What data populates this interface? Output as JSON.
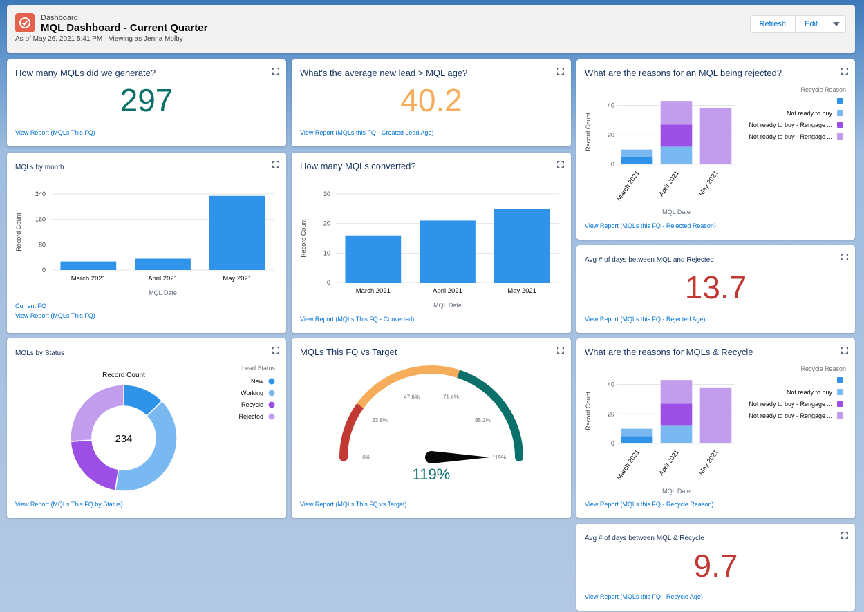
{
  "header": {
    "eyebrow": "Dashboard",
    "title": "MQL Dashboard - Current Quarter",
    "subtitle": "As of May 26, 2021 5:41 PM · Viewing as Jenna Molby",
    "refresh_label": "Refresh",
    "edit_label": "Edit"
  },
  "colors": {
    "teal": "#0b6f6a",
    "orange": "#f5ad5c",
    "red": "#c23934",
    "bar_blue": "#2f93e9",
    "light_blue": "#7ab8f2",
    "purple": "#9b4fe5",
    "light_purple": "#c39ded"
  },
  "cards": {
    "mqls_generated": {
      "title": "How many MQLs did we generate?",
      "value": "297",
      "link": "View Report (MQLs This FQ)"
    },
    "avg_age": {
      "title": "What's the average new lead > MQL age?",
      "value": "40.2",
      "link": "View Report (MQLs this FQ - Created Lead Age)"
    },
    "mqls_by_month": {
      "title": "MQLs by month",
      "footer": "Current FQ",
      "link": "View Report (MQLs This FQ)"
    },
    "converted": {
      "title": "How many MQLs converted?",
      "link": "View Report (MQLs This FQ - Converted)"
    },
    "rejected_reasons": {
      "title": "What are the reasons for an MQL being rejected?",
      "link": "View Report (MQLs this FQ - Rejected Reason)"
    },
    "avg_days_rejected": {
      "title": "Avg # of days between MQL and Rejected",
      "value": "13.7",
      "link": "View Report (MQLs this FQ - Rejected Age)"
    },
    "by_status": {
      "title": "MQLs by Status",
      "link": "View Report (MQLs This FQ by Status)"
    },
    "vs_target": {
      "title": "MQLs This FQ vs Target",
      "link": "View Report (MQLs This FQ vs Target)"
    },
    "recycle_reasons": {
      "title": "What are the reasons for MQLs & Recycle",
      "link": "View Report (MQLs this FQ - Recycle Reason)"
    },
    "avg_days_recycle": {
      "title": "Avg # of days between MQL & Recycle",
      "value": "9.7",
      "link": "View Report (MQLs this FQ - Recycle Age)"
    }
  },
  "chart_data": [
    {
      "id": "mqls_by_month",
      "type": "bar",
      "categories": [
        "March 2021",
        "April 2021",
        "May 2021"
      ],
      "values": [
        27,
        36,
        234
      ],
      "xlabel": "MQL Date",
      "ylabel": "Record Count",
      "ylim": [
        0,
        240
      ],
      "yticks": [
        0,
        80,
        160,
        240
      ]
    },
    {
      "id": "converted",
      "type": "bar",
      "categories": [
        "March 2021",
        "April 2021",
        "May 2021"
      ],
      "values": [
        16,
        21,
        25
      ],
      "xlabel": "MQL Date",
      "ylabel": "Record Count",
      "ylim": [
        0,
        30
      ],
      "yticks": [
        0,
        10,
        20,
        30
      ]
    },
    {
      "id": "rejected_reasons",
      "type": "bar",
      "stacked": true,
      "categories": [
        "March 2021",
        "April 2021",
        "May 2021"
      ],
      "xlabel": "MQL Date",
      "ylabel": "Record Count",
      "ylim": [
        0,
        44
      ],
      "yticks": [
        0,
        20,
        40
      ],
      "legend_title": "Recycle Reason",
      "series": [
        {
          "name": "-",
          "color": "#2f93e9",
          "values": [
            5,
            0,
            0
          ]
        },
        {
          "name": "Not ready to buy",
          "color": "#7ab8f2",
          "values": [
            5,
            12,
            0
          ]
        },
        {
          "name": "Not ready to buy - Rengage ...",
          "color": "#9b4fe5",
          "values": [
            0,
            15,
            0
          ]
        },
        {
          "name": "Not ready to buy - Rengage ...",
          "color": "#c39ded",
          "values": [
            0,
            16,
            38
          ]
        }
      ]
    },
    {
      "id": "by_status",
      "type": "pie",
      "title": "Record Count",
      "total": "234",
      "legend_title": "Lead Status",
      "labels": [
        "New",
        "Working",
        "Recycle",
        "Rejected"
      ],
      "values": [
        30,
        93,
        50,
        61
      ],
      "colors": [
        "#2f93e9",
        "#7ab8f2",
        "#9b4fe5",
        "#c39ded"
      ]
    },
    {
      "id": "vs_target",
      "type": "gauge",
      "value": 119,
      "value_label": "119%",
      "min": 0,
      "max": 119,
      "min_label": "0%",
      "max_label": "119%",
      "tick_labels": [
        "23.8%",
        "47.6%",
        "71.4%",
        "95.2%"
      ],
      "tick_values": [
        23.8,
        47.6,
        71.4,
        95.2
      ],
      "bands": [
        {
          "from": 0,
          "to": 23.8,
          "color": "#c23934"
        },
        {
          "from": 23.8,
          "to": 71.4,
          "color": "#f5ad5c"
        },
        {
          "from": 71.4,
          "to": 119,
          "color": "#0b6f6a"
        }
      ]
    },
    {
      "id": "recycle_reasons",
      "type": "bar",
      "stacked": true,
      "categories": [
        "March 2021",
        "April 2021",
        "May 2021"
      ],
      "xlabel": "MQL Date",
      "ylabel": "Record Count",
      "ylim": [
        0,
        44
      ],
      "yticks": [
        0,
        20,
        40
      ],
      "legend_title": "Recycle Reason",
      "series": [
        {
          "name": "-",
          "color": "#2f93e9",
          "values": [
            5,
            0,
            0
          ]
        },
        {
          "name": "Not ready to buy",
          "color": "#7ab8f2",
          "values": [
            5,
            12,
            0
          ]
        },
        {
          "name": "Not ready to buy - Rengage ...",
          "color": "#9b4fe5",
          "values": [
            0,
            15,
            0
          ]
        },
        {
          "name": "Not ready to buy - Rengage ...",
          "color": "#c39ded",
          "values": [
            0,
            16,
            38
          ]
        }
      ]
    }
  ]
}
